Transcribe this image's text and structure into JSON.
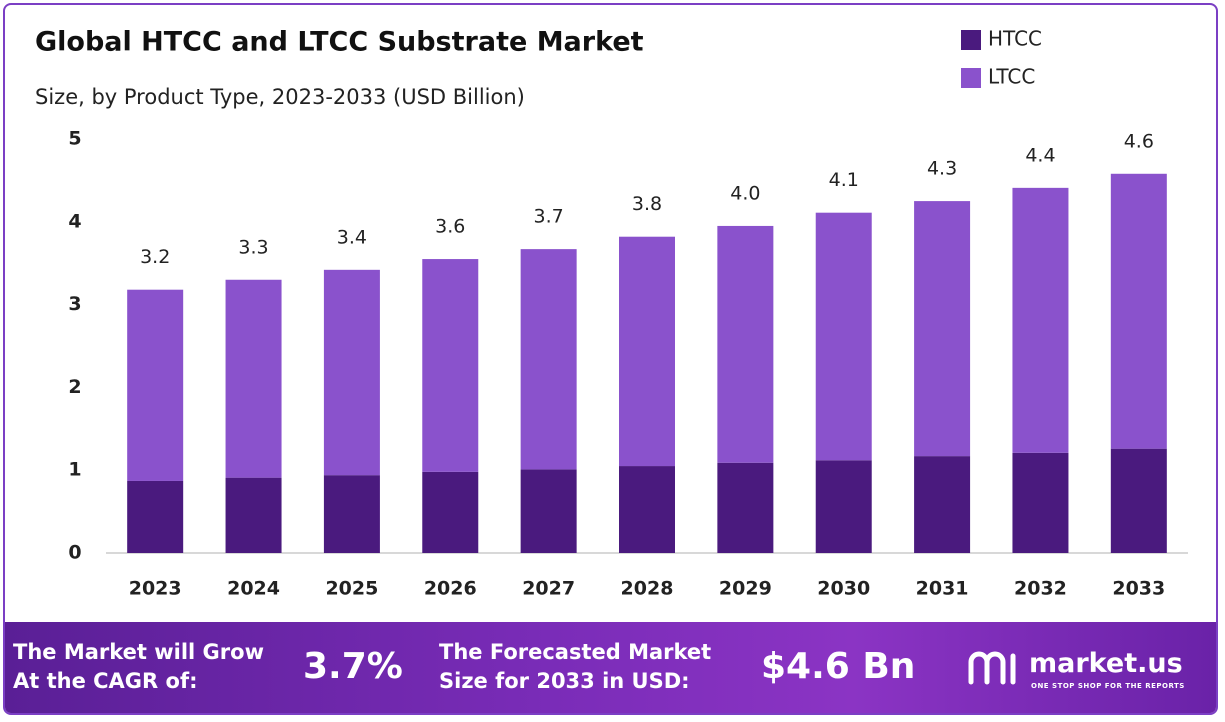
{
  "chart_data": {
    "type": "stacked-bar",
    "title": "Global HTCC and LTCC Substrate Market",
    "subtitle": "Size, by Product Type, 2023-2033 (USD Billion)",
    "categories": [
      "2023",
      "2024",
      "2025",
      "2026",
      "2027",
      "2028",
      "2029",
      "2030",
      "2031",
      "2032",
      "2033"
    ],
    "series": [
      {
        "name": "HTCC",
        "color": "#4a1a7e",
        "values": [
          0.87,
          0.91,
          0.94,
          0.98,
          1.01,
          1.05,
          1.09,
          1.12,
          1.17,
          1.21,
          1.26
        ]
      },
      {
        "name": "LTCC",
        "color": "#8a52cc",
        "values": [
          2.31,
          2.39,
          2.48,
          2.57,
          2.66,
          2.77,
          2.86,
          2.99,
          3.08,
          3.2,
          3.32
        ]
      }
    ],
    "total_labels": [
      "3.2",
      "3.3",
      "3.4",
      "3.6",
      "3.7",
      "3.8",
      "4.0",
      "4.1",
      "4.3",
      "4.4",
      "4.6"
    ],
    "ylim": [
      0,
      5
    ],
    "yticks": [
      0,
      1,
      2,
      3,
      4,
      5
    ],
    "grid": false,
    "legend": "top-right"
  },
  "footer": {
    "cagr_text": [
      "The Market will Grow",
      "At the CAGR of:"
    ],
    "cagr_value": "3.7%",
    "forecast_text": [
      "The Forecasted Market",
      "Size for 2033 in USD:"
    ],
    "forecast_value": "$4.6 Bn",
    "brand": "market.us",
    "tagline": "ONE STOP SHOP FOR THE REPORTS"
  }
}
